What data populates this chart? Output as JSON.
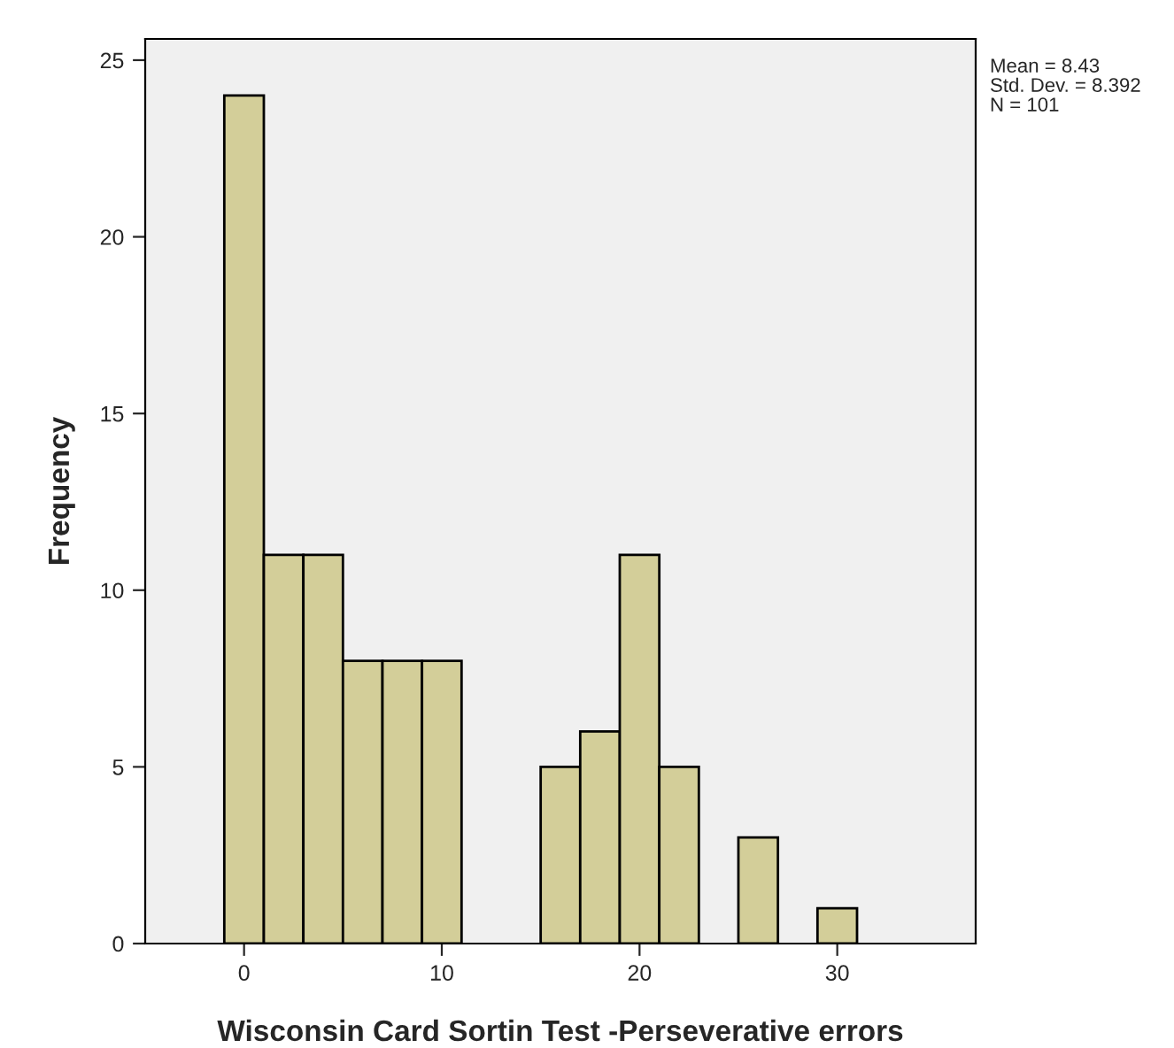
{
  "chart_data": {
    "type": "histogram",
    "xlabel": "Wisconsin Card Sortin Test -Perseverative errors",
    "ylabel": "Frequency",
    "bins": [
      -1,
      1,
      3,
      5,
      7,
      9,
      11,
      13,
      15,
      17,
      19,
      21,
      23,
      25,
      27,
      29,
      31
    ],
    "values": [
      24,
      11,
      11,
      8,
      8,
      8,
      0,
      0,
      5,
      6,
      11,
      5,
      0,
      3,
      0,
      1
    ],
    "color": "#d3ce99",
    "xlim": [
      -5,
      37
    ],
    "ylim": [
      0,
      25.6
    ],
    "xticks": [
      0,
      10,
      20,
      30
    ],
    "yticks": [
      0,
      5,
      10,
      15,
      20,
      25
    ],
    "annotations": [
      "Mean = 8.43",
      "Std. Dev. = 8.392",
      "N = 101"
    ],
    "grid": false,
    "legend": false
  }
}
